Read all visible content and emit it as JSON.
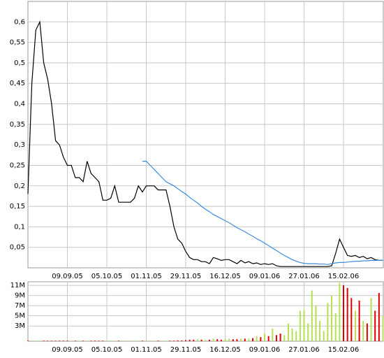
{
  "chart_data": [
    {
      "type": "line",
      "xtick_labels": [
        "09.09.05",
        "05.10.05",
        "01.11.05",
        "29.11.05",
        "16.12.05",
        "09.01.06",
        "27.01.06",
        "15.02.06"
      ],
      "ylim": [
        0,
        0.65
      ],
      "yticks": [
        {
          "value": 0.05,
          "label": "0,05"
        },
        {
          "value": 0.1,
          "label": "0,1"
        },
        {
          "value": 0.15,
          "label": "0,15"
        },
        {
          "value": 0.2,
          "label": "0,2"
        },
        {
          "value": 0.25,
          "label": "0,25"
        },
        {
          "value": 0.3,
          "label": "0,3"
        },
        {
          "value": 0.35,
          "label": "0,35"
        },
        {
          "value": 0.4,
          "label": "0,4"
        },
        {
          "value": 0.45,
          "label": "0,45"
        },
        {
          "value": 0.5,
          "label": "0,5"
        },
        {
          "value": 0.55,
          "label": "0,55"
        },
        {
          "value": 0.6,
          "label": "0,6"
        }
      ],
      "grid": true,
      "series": [
        {
          "color": "#000000",
          "values": [
            0.18,
            0.45,
            0.58,
            0.6,
            0.5,
            0.46,
            0.4,
            0.31,
            0.3,
            0.27,
            0.25,
            0.25,
            0.22,
            0.22,
            0.21,
            0.26,
            0.23,
            0.22,
            0.21,
            0.165,
            0.165,
            0.17,
            0.2,
            0.16,
            0.16,
            0.16,
            0.16,
            0.17,
            0.2,
            0.185,
            0.2,
            0.2,
            0.2,
            0.19,
            0.19,
            0.19,
            0.15,
            0.1,
            0.07,
            0.06,
            0.04,
            0.025,
            0.02,
            0.02,
            0.015,
            0.015,
            0.01,
            0.025,
            0.022,
            0.018,
            0.02,
            0.02,
            0.015,
            0.01,
            0.018,
            0.012,
            0.015,
            0.01,
            0.012,
            0.008,
            0.01,
            0.008,
            0.01,
            0.005,
            0.003,
            0.003,
            0.003,
            0.003,
            0.003,
            0.003,
            0.003,
            0.003,
            0.003,
            0.003,
            0.003,
            0.003,
            0.003,
            0.005,
            0.035,
            0.07,
            0.05,
            0.03,
            0.028,
            0.03,
            0.025,
            0.028,
            0.022,
            0.025,
            0.02,
            0.018,
            0.018
          ]
        },
        {
          "color": "#3c8cdc",
          "values": [
            null,
            null,
            null,
            null,
            null,
            null,
            null,
            null,
            null,
            null,
            null,
            null,
            null,
            null,
            null,
            null,
            null,
            null,
            null,
            null,
            null,
            null,
            null,
            null,
            null,
            null,
            null,
            null,
            null,
            0.26,
            0.26,
            0.25,
            0.24,
            0.23,
            0.22,
            0.21,
            0.205,
            0.2,
            0.193,
            0.186,
            0.18,
            0.172,
            0.165,
            0.158,
            0.15,
            0.143,
            0.137,
            0.13,
            0.125,
            0.12,
            0.115,
            0.11,
            0.104,
            0.098,
            0.093,
            0.088,
            0.082,
            0.077,
            0.071,
            0.066,
            0.06,
            0.054,
            0.048,
            0.042,
            0.036,
            0.03,
            0.025,
            0.02,
            0.016,
            0.013,
            0.011,
            0.01,
            0.01,
            0.01,
            0.009,
            0.009,
            0.008,
            0.01,
            0.012,
            0.013,
            0.013,
            0.014,
            0.015,
            0.016,
            0.016,
            0.017,
            0.017,
            0.018,
            0.018,
            0.018,
            0.018
          ]
        }
      ]
    },
    {
      "type": "bar",
      "xtick_labels": [
        "09.09.05",
        "05.10.05",
        "01.11.05",
        "29.11.05",
        "16.12.05",
        "09.01.06",
        "27.01.06",
        "15.02.06"
      ],
      "ylim": [
        0,
        11700000
      ],
      "yticks": [
        {
          "value": 3000000,
          "label": "3M"
        },
        {
          "value": 5000000,
          "label": "5M"
        },
        {
          "value": 7000000,
          "label": "7M"
        },
        {
          "value": 9000000,
          "label": "9M"
        },
        {
          "value": 11000000,
          "label": "11M"
        }
      ],
      "grid": true,
      "up_color": "#b5e050",
      "down_color": "#e00000",
      "values": [
        100000,
        100000,
        100000,
        100000,
        100000,
        100000,
        100000,
        100000,
        100000,
        100000,
        100000,
        100000,
        100000,
        100000,
        100000,
        100000,
        100000,
        100000,
        100000,
        100000,
        100000,
        100000,
        100000,
        100000,
        100000,
        100000,
        100000,
        100000,
        100000,
        100000,
        100000,
        100000,
        100000,
        100000,
        100000,
        100000,
        100000,
        100000,
        150000,
        150000,
        200000,
        300000,
        300000,
        400000,
        300000,
        300000,
        300000,
        500000,
        400000,
        300000,
        400000,
        500000,
        400000,
        400000,
        500000,
        500000,
        500000,
        600000,
        1000000,
        800000,
        1500000,
        1000000,
        2500000,
        1200000,
        1500000,
        1200000,
        3500000,
        2500000,
        2000000,
        6000000,
        6000000,
        3500000,
        10000000,
        7000000,
        4000000,
        2000000,
        7500000,
        9000000,
        5500000,
        11500000,
        11000000,
        10500000,
        8500000,
        6000000,
        8000000,
        4000000,
        3500000,
        8500000,
        6000000,
        9500000,
        5000000
      ]
    }
  ]
}
